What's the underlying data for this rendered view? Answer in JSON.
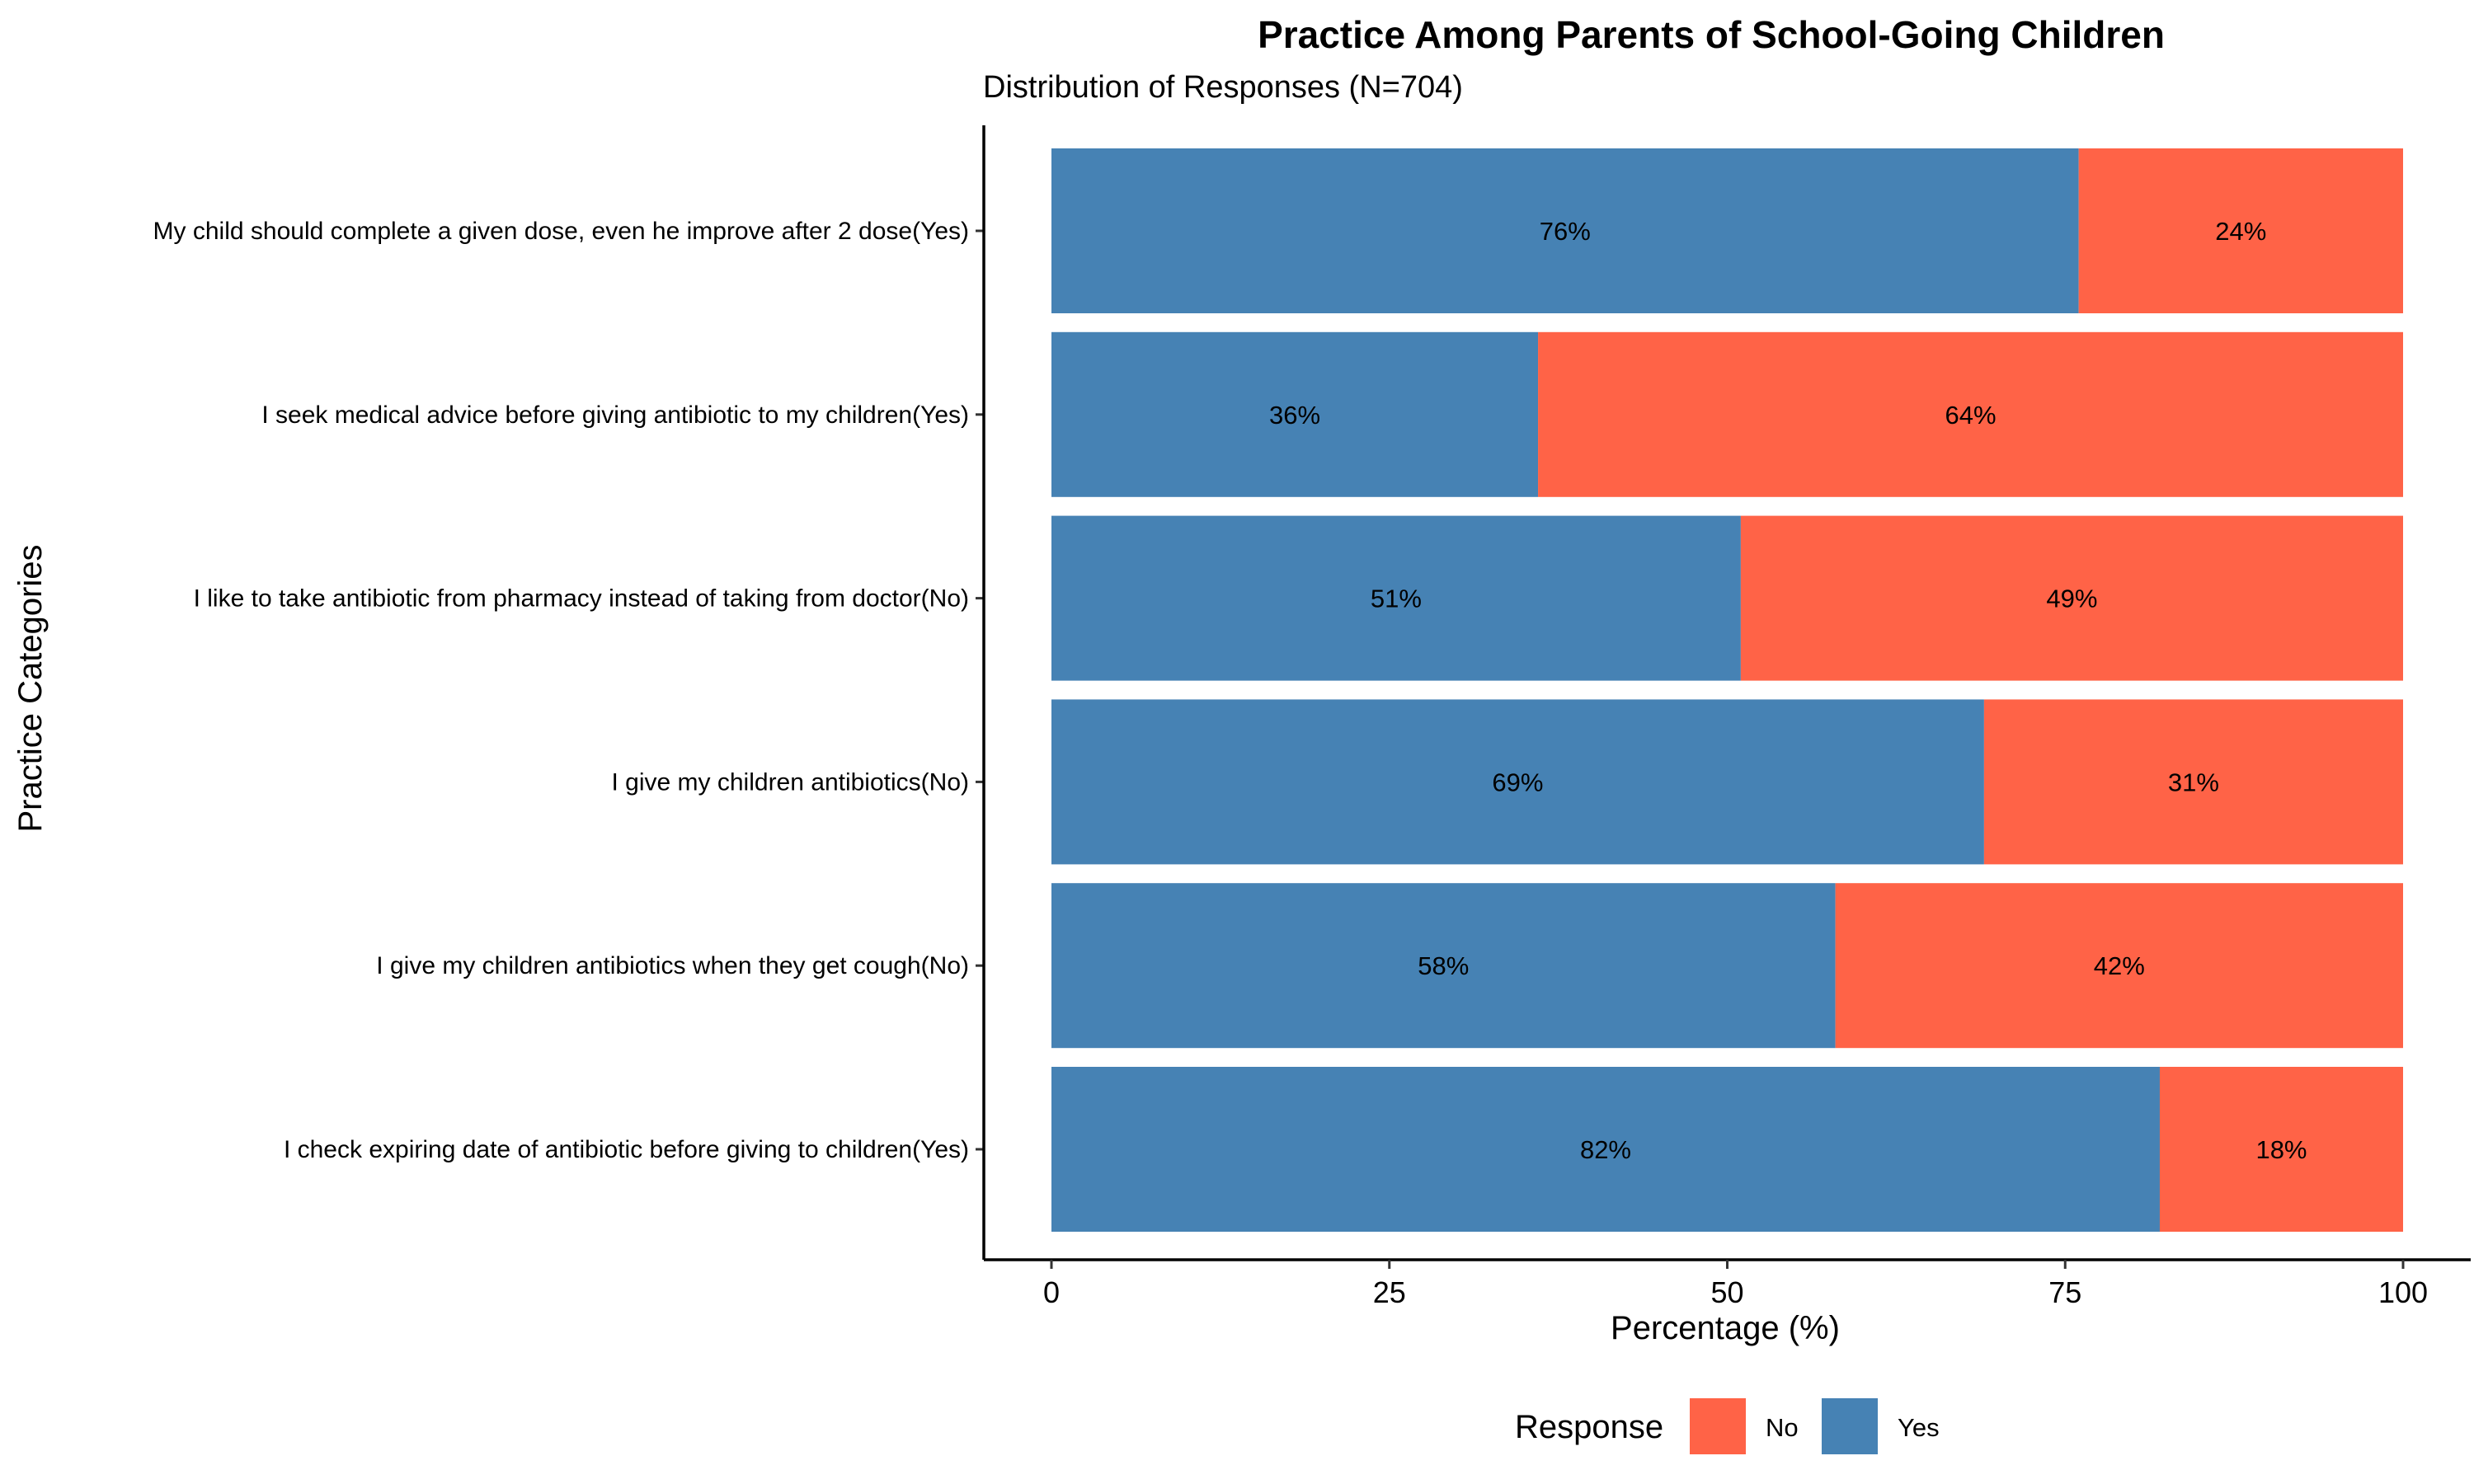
{
  "chart_data": {
    "type": "bar",
    "orientation": "horizontal",
    "stacked": true,
    "title": "Practice Among Parents of School-Going Children",
    "subtitle": "Distribution of Responses (N=704)",
    "xlabel": "Percentage (%)",
    "ylabel": "Practice Categories",
    "xlim": [
      0,
      100
    ],
    "xticks": [
      0,
      25,
      50,
      75,
      100
    ],
    "grid": false,
    "legend": {
      "title": "Response",
      "position": "bottom",
      "entries": [
        {
          "label": "No",
          "color": "#FF6347"
        },
        {
          "label": "Yes",
          "color": "#4682B4"
        }
      ]
    },
    "categories": [
      "My child should complete a given dose, even he improve after 2 dose(Yes)",
      "I seek medical advice before giving antibiotic to my children(Yes)",
      "I like to take antibiotic from pharmacy instead of taking from doctor(No)",
      "I give my children antibiotics(No)",
      "I give my children antibiotics when they get cough(No)",
      "I check expiring date of antibiotic before giving to children(Yes)"
    ],
    "series": [
      {
        "name": "Yes",
        "color": "#4682B4",
        "values": [
          76,
          36,
          51,
          69,
          58,
          82
        ],
        "labels": [
          "76%",
          "36%",
          "51%",
          "69%",
          "58%",
          "82%"
        ]
      },
      {
        "name": "No",
        "color": "#FF6347",
        "values": [
          24,
          64,
          49,
          31,
          42,
          18
        ],
        "labels": [
          "24%",
          "64%",
          "49%",
          "31%",
          "42%",
          "18%"
        ]
      }
    ]
  }
}
